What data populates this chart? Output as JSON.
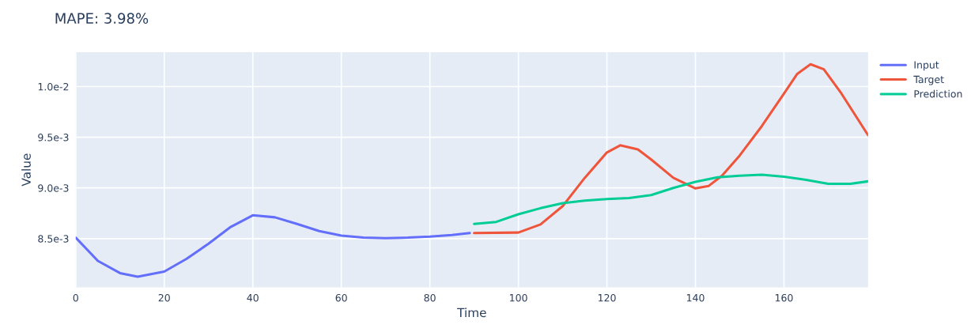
{
  "chart_data": {
    "type": "line",
    "title": "MAPE: 3.98%",
    "xlabel": "Time",
    "ylabel": "Value",
    "xlim": [
      0,
      179
    ],
    "xticks": [
      0,
      20,
      40,
      60,
      80,
      100,
      120,
      140,
      160
    ],
    "ylim": [
      0.00802,
      0.01034
    ],
    "yticks": [
      {
        "value": 0.0085,
        "label": "8.5e-3"
      },
      {
        "value": 0.009,
        "label": "9.0e-3"
      },
      {
        "value": 0.0095,
        "label": "9.5e-3"
      },
      {
        "value": 0.01,
        "label": "1.0e-2"
      }
    ],
    "grid": true,
    "legend": "top right",
    "series": [
      {
        "name": "Input",
        "color": "#636efa",
        "x": [
          0,
          5,
          10,
          14,
          20,
          25,
          30,
          35,
          40,
          45,
          50,
          55,
          60,
          65,
          70,
          75,
          80,
          85,
          89
        ],
        "values": [
          0.00851,
          0.00828,
          0.00816,
          0.008125,
          0.008175,
          0.0083,
          0.00845,
          0.008615,
          0.00873,
          0.00871,
          0.008645,
          0.008575,
          0.00853,
          0.00851,
          0.008505,
          0.00851,
          0.00852,
          0.008535,
          0.008555
        ]
      },
      {
        "name": "Target",
        "color": "#ef553b",
        "x": [
          90,
          100,
          105,
          110,
          115,
          120,
          123,
          127,
          130,
          135,
          140,
          143,
          146,
          150,
          155,
          160,
          163,
          166,
          169,
          173,
          179
        ],
        "values": [
          0.008555,
          0.00856,
          0.00864,
          0.00882,
          0.0091,
          0.00935,
          0.00942,
          0.00938,
          0.00928,
          0.0091,
          0.008995,
          0.00902,
          0.00912,
          0.00932,
          0.00961,
          0.00993,
          0.010125,
          0.01022,
          0.01017,
          0.00993,
          0.00952
        ]
      },
      {
        "name": "Prediction",
        "color": "#00cc96",
        "x": [
          90,
          95,
          100,
          105,
          110,
          115,
          120,
          125,
          130,
          135,
          140,
          145,
          150,
          155,
          160,
          165,
          170,
          175,
          179
        ],
        "values": [
          0.008645,
          0.008665,
          0.00874,
          0.0088,
          0.00885,
          0.008875,
          0.00889,
          0.0089,
          0.00893,
          0.009,
          0.00906,
          0.009105,
          0.00912,
          0.00913,
          0.00911,
          0.00908,
          0.00904,
          0.00904,
          0.009065
        ]
      }
    ]
  }
}
